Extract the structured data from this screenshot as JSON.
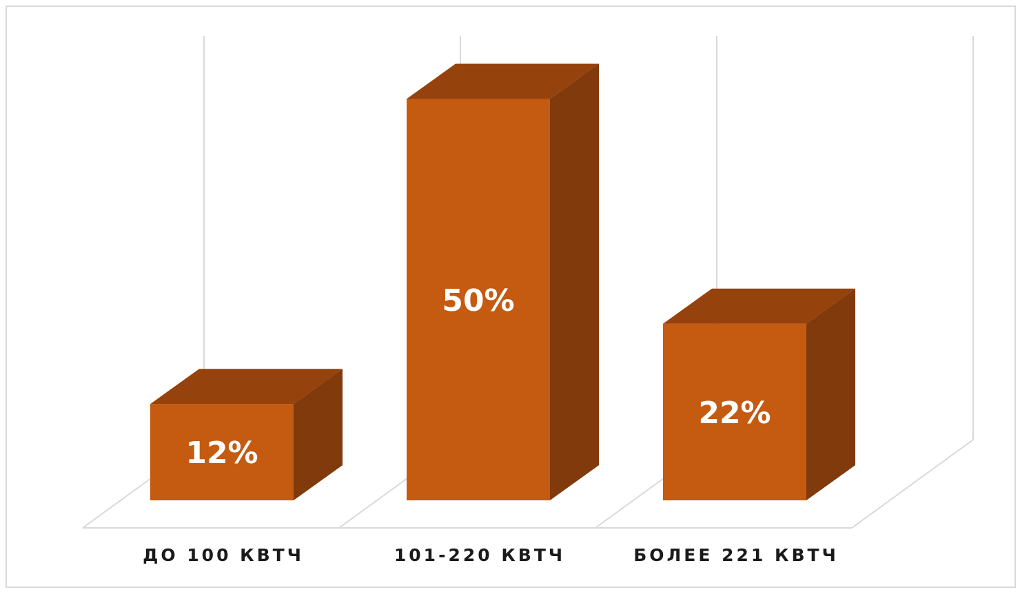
{
  "chart_data": {
    "type": "bar",
    "style": "3d-column",
    "categories": [
      "ДО 100 КВТЧ",
      "101-220 КВТЧ",
      "БОЛЕЕ 221 КВТЧ"
    ],
    "values": [
      12,
      50,
      22
    ],
    "value_labels": [
      "12%",
      "50%",
      "22%"
    ],
    "unit": "%",
    "title": "",
    "xlabel": "",
    "ylabel": "",
    "ylim": [
      0,
      55
    ],
    "grid": true,
    "legend": "none"
  },
  "colors": {
    "bar_front": "#c55a11",
    "bar_top": "#96420c",
    "bar_side": "#803a0b",
    "grid": "#d9d9d9",
    "frame": "#d9d9d9",
    "label_text": "#1a1a1a",
    "value_text": "#ffffff"
  }
}
